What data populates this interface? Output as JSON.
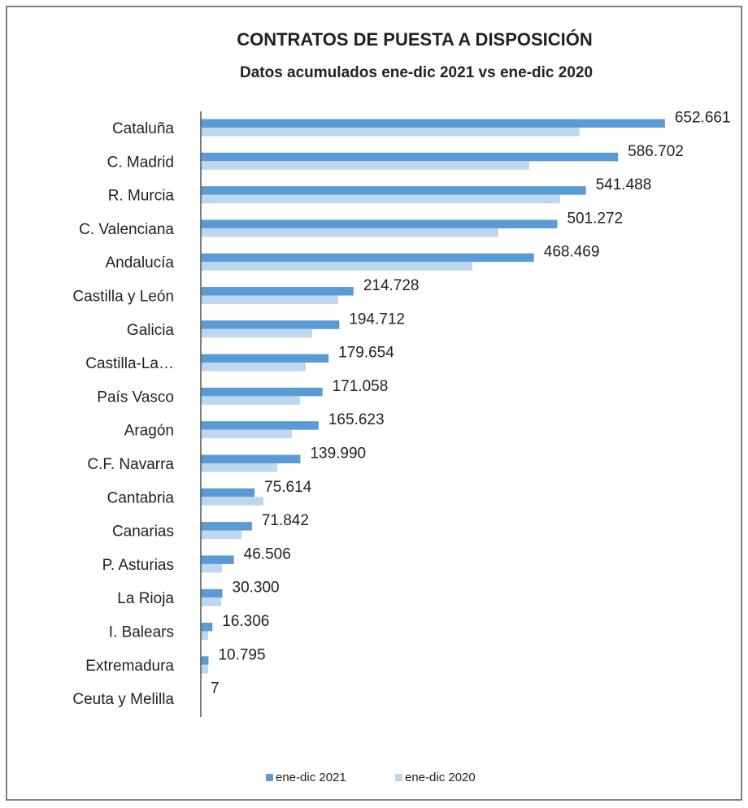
{
  "chart_data": {
    "type": "bar",
    "orientation": "horizontal",
    "title": "CONTRATOS DE PUESTA A DISPOSICIÓN",
    "subtitle": "Datos acumulados ene-dic 2021 vs ene-dic 2020",
    "categories": [
      "Cataluña",
      "C. Madrid",
      "R. Murcia",
      "C. Valenciana",
      "Andalucía",
      "Castilla y León",
      "Galicia",
      "Castilla-La…",
      "País Vasco",
      "Aragón",
      "C.F. Navarra",
      "Cantabria",
      "Canarias",
      "P. Asturias",
      "La Rioja",
      "I. Balears",
      "Extremadura",
      "Ceuta y Melilla"
    ],
    "series": [
      {
        "name": "ene-dic 2021",
        "color": "#5b9bd5",
        "values": [
          652661,
          586702,
          541488,
          501272,
          468469,
          214728,
          194712,
          179654,
          171058,
          165623,
          139990,
          75614,
          71842,
          46506,
          30300,
          16306,
          10795,
          7
        ],
        "value_labels": [
          "652.661",
          "586.702",
          "541.488",
          "501.272",
          "468.469",
          "214.728",
          "194.712",
          "179.654",
          "171.058",
          "165.623",
          "139.990",
          "75.614",
          "71.842",
          "46.506",
          "30.300",
          "16.306",
          "10.795",
          "7"
        ]
      },
      {
        "name": "ene-dic 2020",
        "color": "#bdd7ee",
        "values": [
          532600,
          461800,
          505200,
          418300,
          381800,
          193200,
          156600,
          147400,
          139400,
          128000,
          107400,
          88000,
          57200,
          29700,
          28600,
          10300,
          10300,
          5
        ]
      }
    ],
    "xlim": [
      0,
      750000
    ],
    "legend": "bottom"
  }
}
